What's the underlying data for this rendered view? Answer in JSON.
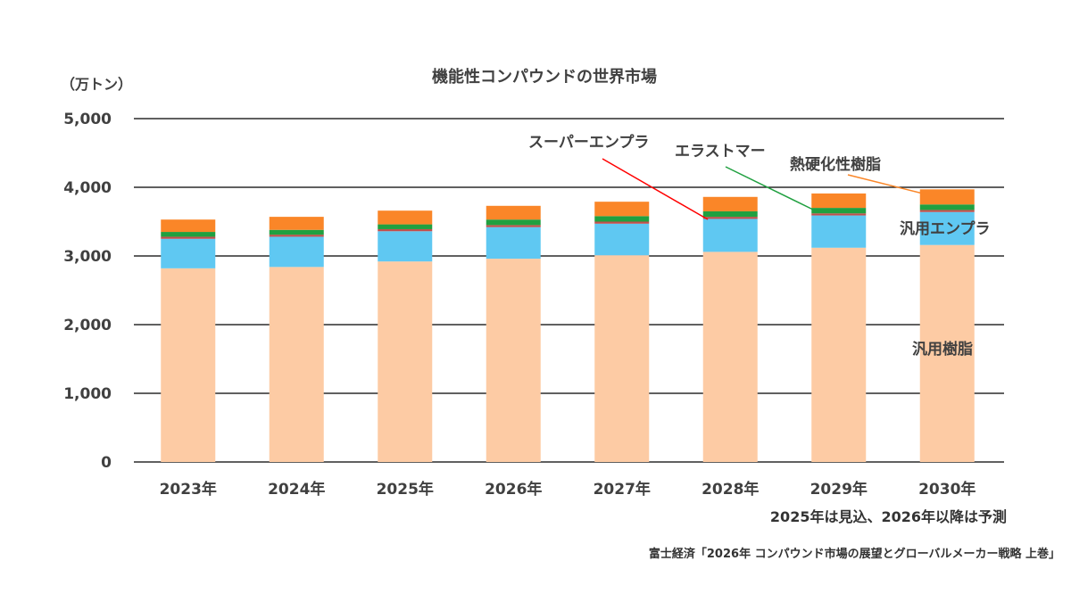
{
  "chart_data": {
    "type": "bar",
    "stacked": true,
    "title": "機能性コンパウンドの世界市場",
    "unit_label": "（万トン）",
    "categories": [
      "2023年",
      "2024年",
      "2025年",
      "2026年",
      "2027年",
      "2028年",
      "2029年",
      "2030年"
    ],
    "ylim": [
      0,
      5000
    ],
    "yticks": [
      0,
      1000,
      2000,
      3000,
      4000,
      5000
    ],
    "ytick_labels": [
      "0",
      "1,000",
      "2,000",
      "3,000",
      "4,000",
      "5,000"
    ],
    "grid": true,
    "series": [
      {
        "name": "汎用樹脂",
        "color": "#FDCBA4",
        "values": [
          2820,
          2840,
          2920,
          2960,
          3010,
          3060,
          3120,
          3160
        ]
      },
      {
        "name": "汎用エンプラ",
        "color": "#5FC8F2",
        "values": [
          430,
          440,
          440,
          460,
          460,
          480,
          470,
          480
        ]
      },
      {
        "name": "スーパーエンプラ",
        "color": "#C0504D",
        "values": [
          30,
          30,
          30,
          30,
          30,
          30,
          30,
          30
        ]
      },
      {
        "name": "エラストマー",
        "color": "#20A040",
        "values": [
          70,
          70,
          70,
          80,
          80,
          80,
          80,
          80
        ]
      },
      {
        "name": "熱硬化性樹脂",
        "color": "#FA8628",
        "values": [
          180,
          190,
          200,
          200,
          210,
          210,
          210,
          220
        ]
      }
    ],
    "note": "2025年は見込、2026年以降は予測",
    "source": "富士経済「2026年 コンパウンド市場の展望とグローバルメーカー戦略 上巻」"
  }
}
